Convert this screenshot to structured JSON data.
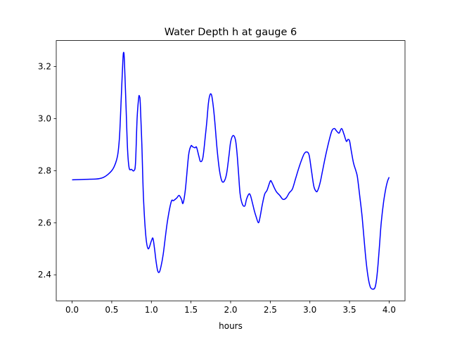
{
  "chart_data": {
    "type": "line",
    "title": "Water Depth h at gauge 6",
    "xlabel": "hours",
    "ylabel": "",
    "xlim": [
      -0.2,
      4.2
    ],
    "ylim": [
      2.3,
      3.3
    ],
    "xticks": [
      0.0,
      0.5,
      1.0,
      1.5,
      2.0,
      2.5,
      3.0,
      3.5,
      4.0
    ],
    "xtick_labels": [
      "0.0",
      "0.5",
      "1.0",
      "1.5",
      "2.0",
      "2.5",
      "3.0",
      "3.5",
      "4.0"
    ],
    "yticks": [
      2.4,
      2.6,
      2.8,
      3.0,
      3.2
    ],
    "ytick_labels": [
      "2.4",
      "2.6",
      "2.8",
      "3.0",
      "3.2"
    ],
    "grid": false,
    "line_color": "#0000ff",
    "series": [
      {
        "x": [
          0.0,
          0.1,
          0.2,
          0.3,
          0.35,
          0.4,
          0.45,
          0.5,
          0.53,
          0.56,
          0.58,
          0.6,
          0.62,
          0.64,
          0.65,
          0.66,
          0.68,
          0.7,
          0.72,
          0.75,
          0.78,
          0.8,
          0.82,
          0.84,
          0.85,
          0.86,
          0.88,
          0.9,
          0.93,
          0.96,
          1.0,
          1.02,
          1.04,
          1.06,
          1.08,
          1.1,
          1.12,
          1.15,
          1.2,
          1.25,
          1.28,
          1.32,
          1.35,
          1.38,
          1.4,
          1.43,
          1.47,
          1.5,
          1.52,
          1.55,
          1.57,
          1.6,
          1.62,
          1.65,
          1.68,
          1.7,
          1.72,
          1.74,
          1.76,
          1.78,
          1.8,
          1.83,
          1.86,
          1.89,
          1.92,
          1.95,
          1.98,
          2.0,
          2.03,
          2.06,
          2.08,
          2.1,
          2.12,
          2.15,
          2.18,
          2.2,
          2.23,
          2.25,
          2.28,
          2.3,
          2.32,
          2.35,
          2.37,
          2.4,
          2.43,
          2.46,
          2.5,
          2.52,
          2.55,
          2.58,
          2.62,
          2.66,
          2.7,
          2.74,
          2.78,
          2.82,
          2.86,
          2.9,
          2.93,
          2.96,
          2.99,
          3.02,
          3.05,
          3.08,
          3.1,
          3.13,
          3.16,
          3.2,
          3.25,
          3.28,
          3.31,
          3.33,
          3.35,
          3.37,
          3.4,
          3.43,
          3.46,
          3.48,
          3.5,
          3.52,
          3.55,
          3.58,
          3.6,
          3.63,
          3.66,
          3.7,
          3.73,
          3.76,
          3.79,
          3.82,
          3.84,
          3.86,
          3.88,
          3.9,
          3.93,
          3.96,
          3.98,
          4.0
        ],
        "y": [
          2.765,
          2.766,
          2.767,
          2.768,
          2.77,
          2.775,
          2.785,
          2.8,
          2.815,
          2.84,
          2.87,
          2.94,
          3.08,
          3.22,
          3.255,
          3.22,
          3.05,
          2.88,
          2.81,
          2.805,
          2.8,
          2.83,
          3.0,
          3.08,
          3.085,
          3.06,
          2.9,
          2.7,
          2.55,
          2.5,
          2.53,
          2.54,
          2.5,
          2.45,
          2.415,
          2.41,
          2.43,
          2.48,
          2.6,
          2.68,
          2.685,
          2.695,
          2.705,
          2.69,
          2.675,
          2.73,
          2.86,
          2.895,
          2.892,
          2.888,
          2.89,
          2.855,
          2.835,
          2.85,
          2.93,
          2.99,
          3.06,
          3.092,
          3.09,
          3.05,
          2.99,
          2.88,
          2.8,
          2.76,
          2.76,
          2.79,
          2.86,
          2.91,
          2.935,
          2.92,
          2.87,
          2.79,
          2.71,
          2.67,
          2.665,
          2.69,
          2.71,
          2.705,
          2.67,
          2.645,
          2.625,
          2.6,
          2.62,
          2.67,
          2.71,
          2.725,
          2.76,
          2.755,
          2.735,
          2.718,
          2.705,
          2.69,
          2.695,
          2.715,
          2.73,
          2.77,
          2.81,
          2.845,
          2.866,
          2.872,
          2.86,
          2.8,
          2.74,
          2.72,
          2.725,
          2.755,
          2.8,
          2.86,
          2.925,
          2.955,
          2.962,
          2.955,
          2.948,
          2.945,
          2.962,
          2.94,
          2.913,
          2.92,
          2.915,
          2.88,
          2.83,
          2.8,
          2.775,
          2.7,
          2.62,
          2.48,
          2.4,
          2.355,
          2.345,
          2.35,
          2.38,
          2.44,
          2.52,
          2.6,
          2.68,
          2.735,
          2.76,
          2.775
        ]
      }
    ]
  }
}
